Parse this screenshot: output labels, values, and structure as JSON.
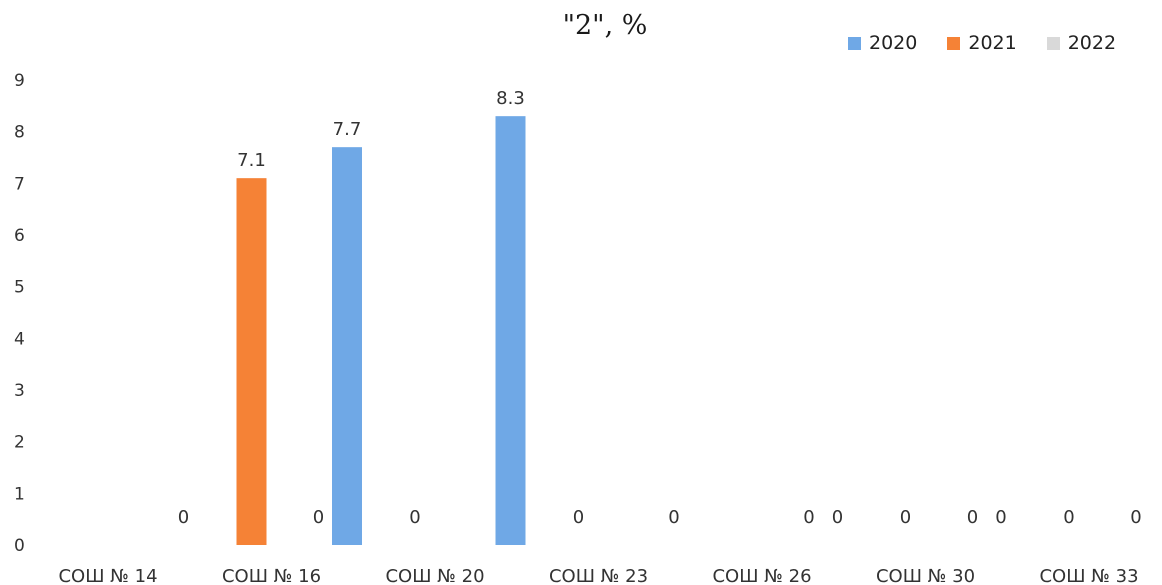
{
  "chart_data": {
    "type": "bar",
    "title": "\"2\", %",
    "xlabel": "",
    "ylabel": "",
    "ylim": [
      0,
      9
    ],
    "yticks": [
      "0",
      "1",
      "2",
      "3",
      "4",
      "5",
      "6",
      "7",
      "8",
      "9"
    ],
    "grid": false,
    "legend_position": "top-right",
    "categories": [
      "СОШ № 14",
      "СОШ № 16",
      "СОШ № 20",
      "СОШ № 23",
      "СОШ № 26",
      "СОШ № 30",
      "СОШ № 33"
    ],
    "series": [
      {
        "name": "2020",
        "color": "#6fa8e6",
        "values": [
          null,
          0,
          7.7,
          8.3,
          0,
          0,
          0
        ],
        "labels": [
          "",
          "0",
          "7.7",
          "8.3",
          "0",
          "0",
          "0"
        ]
      },
      {
        "name": "2021",
        "color": "#f58236",
        "values": [
          null,
          7.1,
          0,
          0,
          null,
          0,
          0
        ],
        "labels": [
          "",
          "7.1",
          "0",
          "0",
          "",
          "0",
          "0"
        ]
      },
      {
        "name": "2022",
        "color": "#d9d9d9",
        "values": [
          null,
          0,
          null,
          null,
          0,
          0,
          0
        ],
        "labels": [
          "",
          "0",
          "",
          "",
          "0",
          "0",
          "0"
        ]
      }
    ]
  }
}
